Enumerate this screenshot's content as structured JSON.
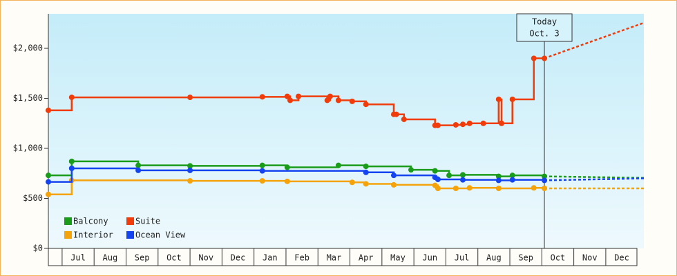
{
  "chart_data": {
    "type": "step-line",
    "ylim": [
      0,
      2345
    ],
    "yticks": [
      {
        "value": 0,
        "label": "$0"
      },
      {
        "value": 500,
        "label": "$500"
      },
      {
        "value": 1000,
        "label": "$1,000"
      },
      {
        "value": 1500,
        "label": "$1,500"
      },
      {
        "value": 2000,
        "label": "$2,000"
      }
    ],
    "xlim": [
      -0.43,
      18.19
    ],
    "xticks": [
      {
        "value": 0.5,
        "label": "Jul"
      },
      {
        "value": 1.5,
        "label": "Aug"
      },
      {
        "value": 2.5,
        "label": "Sep"
      },
      {
        "value": 3.5,
        "label": "Oct"
      },
      {
        "value": 4.5,
        "label": "Nov"
      },
      {
        "value": 5.5,
        "label": "Dec"
      },
      {
        "value": 6.5,
        "label": "Jan"
      },
      {
        "value": 7.5,
        "label": "Feb"
      },
      {
        "value": 8.5,
        "label": "Mar"
      },
      {
        "value": 9.5,
        "label": "Apr"
      },
      {
        "value": 10.5,
        "label": "May"
      },
      {
        "value": 11.5,
        "label": "Jun"
      },
      {
        "value": 12.5,
        "label": "Jul"
      },
      {
        "value": 13.5,
        "label": "Aug"
      },
      {
        "value": 14.5,
        "label": "Sep"
      },
      {
        "value": 15.5,
        "label": "Oct"
      },
      {
        "value": 16.5,
        "label": "Nov"
      },
      {
        "value": 17.5,
        "label": "Dec"
      }
    ],
    "annotation": {
      "lines": [
        "Today",
        "Oct. 3"
      ],
      "x": 15.08
    },
    "legend": "bottom-left",
    "series": [
      {
        "name": "Balcony",
        "color": "#1a9c1a",
        "x": [
          -0.43,
          0.3,
          2.38,
          4.0,
          6.26,
          7.04,
          8.64,
          9.5,
          10.91,
          11.66,
          12.1,
          12.53,
          13.65,
          14.08,
          15.08
        ],
        "values": [
          730,
          870,
          830,
          825,
          830,
          810,
          830,
          820,
          785,
          775,
          730,
          735,
          720,
          730,
          720
        ],
        "forecast": {
          "x": [
            15.08,
            18.19
          ],
          "values": [
            720,
            705
          ]
        }
      },
      {
        "name": "Suite",
        "color": "#f03c0a",
        "x": [
          -0.43,
          0.3,
          4.0,
          6.26,
          7.04,
          7.13,
          7.39,
          8.29,
          8.38,
          8.64,
          9.07,
          9.5,
          10.37,
          10.45,
          10.69,
          11.66,
          11.75,
          12.31,
          12.53,
          12.74,
          13.17,
          13.65,
          13.74,
          14.08,
          14.75,
          15.08
        ],
        "values": [
          1380,
          1510,
          1510,
          1515,
          1520,
          1480,
          1520,
          1480,
          1520,
          1480,
          1470,
          1440,
          1340,
          1340,
          1290,
          1230,
          1230,
          1235,
          1240,
          1250,
          1250,
          1490,
          1250,
          1490,
          1900,
          1900
        ],
        "forecast": {
          "x": [
            15.08,
            18.19
          ],
          "values": [
            1900,
            2255
          ]
        }
      },
      {
        "name": "Interior",
        "color": "#f5a30a",
        "x": [
          -0.43,
          0.3,
          4.0,
          6.26,
          7.04,
          9.07,
          9.5,
          10.37,
          11.66,
          11.75,
          12.31,
          12.74,
          13.65,
          14.75,
          15.08
        ],
        "values": [
          540,
          680,
          675,
          675,
          670,
          660,
          645,
          635,
          630,
          600,
          600,
          605,
          600,
          605,
          600
        ],
        "forecast": {
          "x": [
            15.08,
            18.19
          ],
          "values": [
            600,
            600
          ]
        }
      },
      {
        "name": "Ocean View",
        "color": "#1444f0",
        "x": [
          -0.43,
          0.3,
          2.38,
          4.0,
          6.26,
          9.5,
          10.37,
          11.66,
          11.75,
          12.53,
          13.65,
          14.08,
          15.08
        ],
        "values": [
          665,
          800,
          780,
          780,
          775,
          760,
          730,
          710,
          690,
          685,
          680,
          685,
          680
        ],
        "forecast": {
          "x": [
            15.08,
            18.19
          ],
          "values": [
            680,
            700
          ]
        }
      }
    ]
  }
}
